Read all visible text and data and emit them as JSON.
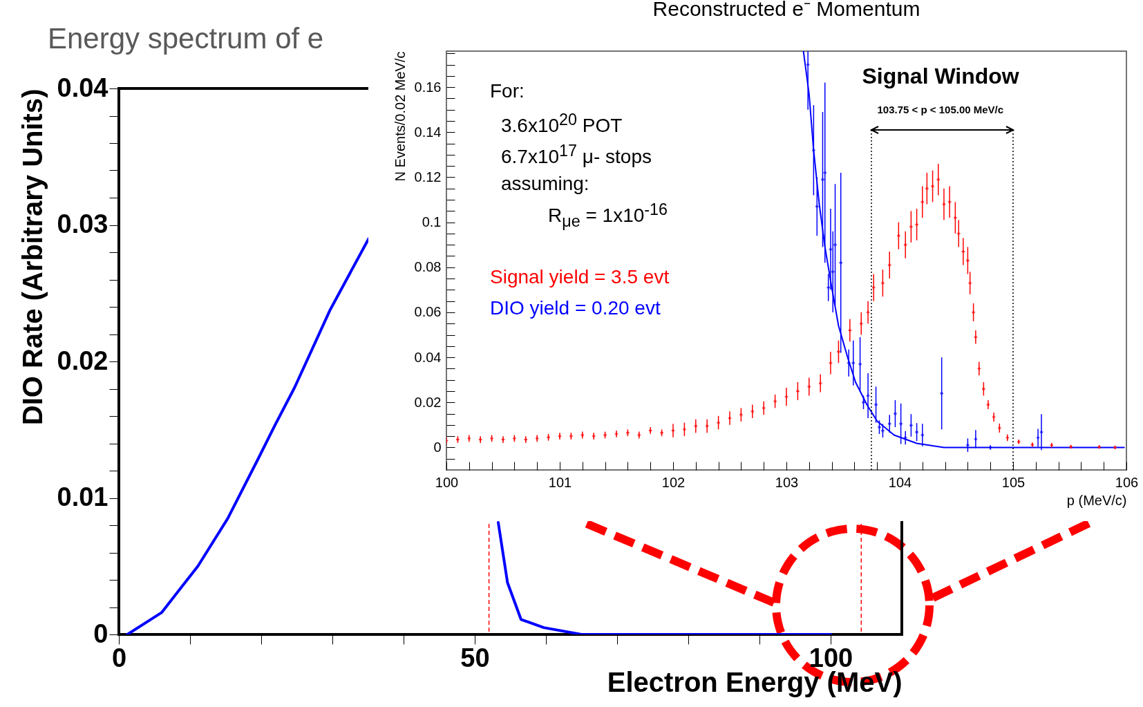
{
  "chart_data": [
    {
      "type": "line",
      "title": "Energy spectrum of e",
      "xlabel": "Electron Energy (MeV)",
      "ylabel": "DIO Rate (Arbitrary Units)",
      "xlim": [
        0,
        110
      ],
      "xticks": [
        0,
        {
          "value": 10,
          "label": null
        },
        {
          "value": 20,
          "label": null
        },
        {
          "value": 30,
          "label": null
        },
        {
          "value": 40,
          "label": null
        },
        50,
        {
          "value": 60,
          "label": null
        },
        {
          "value": 70,
          "label": null
        },
        {
          "value": 80,
          "label": null
        },
        {
          "value": 90,
          "label": null
        },
        100
      ],
      "ylim": [
        0,
        0.04
      ],
      "yticks": [
        0,
        {
          "value": 0.002,
          "label": null
        },
        {
          "value": 0.004,
          "label": null
        },
        {
          "value": 0.006,
          "label": null
        },
        {
          "value": 0.008,
          "label": null
        },
        0.01,
        {
          "value": 0.012,
          "label": null
        },
        {
          "value": 0.014,
          "label": null
        },
        {
          "value": 0.016,
          "label": null
        },
        {
          "value": 0.018,
          "label": null
        },
        0.02,
        {
          "value": 0.022,
          "label": null
        },
        {
          "value": 0.024,
          "label": null
        },
        {
          "value": 0.026,
          "label": null
        },
        {
          "value": 0.028,
          "label": null
        },
        0.03,
        {
          "value": 0.032,
          "label": null
        },
        {
          "value": 0.034,
          "label": null
        },
        {
          "value": 0.036,
          "label": null
        },
        {
          "value": 0.038,
          "label": null
        },
        0.04
      ],
      "series": [
        {
          "color": "#0000ff",
          "x": [
            1.2,
            6.0,
            11.1,
            15.3,
            19.6,
            21.9,
            24.7,
            29.7,
            35.1,
            44,
            53.3,
            54.6,
            56.5,
            59.7,
            65,
            100
          ],
          "values": [
            0,
            0.0016,
            0.005,
            0.0085,
            0.0129,
            0.0153,
            0.0181,
            0.0238,
            0.029,
            null,
            0.0082,
            0.0038,
            0.0011,
            0.0005,
            0,
            0
          ]
        }
      ],
      "ref_lines": [
        {
          "axis": "x",
          "value": 52,
          "color": "#ff0000",
          "line_style": "dashed"
        },
        {
          "axis": "x",
          "value": 104.3,
          "color": "#ff0000",
          "line_style": "dashed"
        }
      ]
    },
    {
      "type": "scatter",
      "title": "Reconstructed e⁻ Momentum",
      "xlabel": "p (MeV/c)",
      "ylabel": "N Events/0.02 MeV/c",
      "marker": "cross",
      "xlim": [
        100,
        106
      ],
      "xticks": [
        100,
        {
          "value": 100.2,
          "label": null
        },
        {
          "value": 100.4,
          "label": null
        },
        {
          "value": 100.6,
          "label": null
        },
        {
          "value": 100.8,
          "label": null
        },
        101,
        {
          "value": 101.2,
          "label": null
        },
        {
          "value": 101.4,
          "label": null
        },
        {
          "value": 101.6,
          "label": null
        },
        {
          "value": 101.8,
          "label": null
        },
        102,
        {
          "value": 102.2,
          "label": null
        },
        {
          "value": 102.4,
          "label": null
        },
        {
          "value": 102.6,
          "label": null
        },
        {
          "value": 102.8,
          "label": null
        },
        103,
        {
          "value": 103.2,
          "label": null
        },
        {
          "value": 103.4,
          "label": null
        },
        {
          "value": 103.6,
          "label": null
        },
        {
          "value": 103.8,
          "label": null
        },
        104,
        {
          "value": 104.2,
          "label": null
        },
        {
          "value": 104.4,
          "label": null
        },
        {
          "value": 104.6,
          "label": null
        },
        {
          "value": 104.8,
          "label": null
        },
        105,
        {
          "value": 105.2,
          "label": null
        },
        {
          "value": 105.4,
          "label": null
        },
        {
          "value": 105.6,
          "label": null
        },
        {
          "value": 105.8,
          "label": null
        },
        106
      ],
      "ylim": [
        -0.01,
        0.176
      ],
      "yticks": [
        {
          "value": -0.005,
          "label": null
        },
        0,
        {
          "value": 0.005,
          "label": null
        },
        {
          "value": 0.01,
          "label": null
        },
        {
          "value": 0.015,
          "label": null
        },
        0.02,
        {
          "value": 0.025,
          "label": null
        },
        {
          "value": 0.03,
          "label": null
        },
        {
          "value": 0.035,
          "label": null
        },
        0.04,
        {
          "value": 0.045,
          "label": null
        },
        {
          "value": 0.05,
          "label": null
        },
        {
          "value": 0.055,
          "label": null
        },
        0.06,
        {
          "value": 0.065,
          "label": null
        },
        {
          "value": 0.07,
          "label": null
        },
        {
          "value": 0.075,
          "label": null
        },
        0.08,
        {
          "value": 0.085,
          "label": null
        },
        {
          "value": 0.09,
          "label": null
        },
        {
          "value": 0.095,
          "label": null
        },
        0.1,
        {
          "value": 0.105,
          "label": null
        },
        {
          "value": 0.11,
          "label": null
        },
        {
          "value": 0.115,
          "label": null
        },
        0.12,
        {
          "value": 0.125,
          "label": null
        },
        {
          "value": 0.13,
          "label": null
        },
        {
          "value": 0.135,
          "label": null
        },
        0.14,
        {
          "value": 0.145,
          "label": null
        },
        {
          "value": 0.15,
          "label": null
        },
        {
          "value": 0.155,
          "label": null
        },
        0.16,
        {
          "value": 0.165,
          "label": null
        },
        {
          "value": 0.17,
          "label": null
        },
        {
          "value": 0.175,
          "label": null
        }
      ],
      "series": [
        {
          "color": "#ff0000",
          "x": [
            100.0,
            100.1,
            100.2,
            100.3,
            100.4,
            100.5,
            100.6,
            100.7,
            100.8,
            100.9,
            101.0,
            101.1,
            101.2,
            101.3,
            101.4,
            101.5,
            101.6,
            101.7,
            101.8,
            101.9,
            102.0,
            102.1,
            102.2,
            102.3,
            102.4,
            102.5,
            102.6,
            102.7,
            102.8,
            102.9,
            103.0,
            103.1,
            103.2,
            103.3,
            103.39,
            103.46,
            103.56,
            103.66,
            103.72,
            103.77,
            103.85,
            103.91,
            103.99,
            104.05,
            104.1,
            104.15,
            104.2,
            104.24,
            104.29,
            104.34,
            104.39,
            104.44,
            104.49,
            104.52,
            104.56,
            104.6,
            104.62,
            104.65,
            104.67,
            104.7,
            104.74,
            104.78,
            104.83,
            104.88,
            104.95,
            105.05,
            105.17,
            105.34,
            105.51,
            105.76,
            105.9
          ],
          "values": [
            0.003,
            0.0035,
            0.004,
            0.0035,
            0.004,
            0.0035,
            0.004,
            0.0035,
            0.004,
            0.0045,
            0.005,
            0.005,
            0.0055,
            0.005,
            0.0055,
            0.006,
            0.0065,
            0.0055,
            0.0075,
            0.0065,
            0.0075,
            0.008,
            0.0095,
            0.0095,
            0.011,
            0.013,
            0.0145,
            0.016,
            0.0175,
            0.0205,
            0.0225,
            0.025,
            0.027,
            0.0285,
            0.0375,
            0.0425,
            0.052,
            0.055,
            0.06,
            0.071,
            0.073,
            0.081,
            0.094,
            0.09,
            0.098,
            0.099,
            0.109,
            0.115,
            0.116,
            0.119,
            0.108,
            0.109,
            0.102,
            0.095,
            0.087,
            0.083,
            0.073,
            0.06,
            0.049,
            0.035,
            0.026,
            0.019,
            0.0135,
            0.0086,
            0.0043,
            0.0025,
            0.0012,
            0.001,
            0.0003,
            0.0002,
            0
          ],
          "errors": [
            0.0015,
            0.0015,
            0.0015,
            0.0015,
            0.0015,
            0.0015,
            0.0015,
            0.0015,
            0.0015,
            0.0015,
            0.0015,
            0.0015,
            0.0015,
            0.0015,
            0.0015,
            0.0015,
            0.0015,
            0.0015,
            0.0015,
            0.0015,
            0.003,
            0.003,
            0.003,
            0.003,
            0.003,
            0.003,
            0.003,
            0.003,
            0.003,
            0.003,
            0.004,
            0.004,
            0.004,
            0.004,
            0.005,
            0.005,
            0.005,
            0.005,
            0.005,
            0.006,
            0.006,
            0.006,
            0.006,
            0.006,
            0.007,
            0.007,
            0.007,
            0.007,
            0.007,
            0.007,
            0.007,
            0.007,
            0.007,
            0.006,
            0.006,
            0.006,
            0.005,
            0.004,
            0.003,
            0.003,
            0.003,
            0.002,
            0.002,
            0.002,
            0.0015,
            0.001,
            0.001,
            0.001,
            0.0008,
            0.0008,
            0.0008
          ]
        },
        {
          "color": "#0000ff",
          "x": [
            103.19,
            103.24,
            103.27,
            103.32,
            103.34,
            103.37,
            103.39,
            103.41,
            103.43,
            103.48,
            103.55,
            103.59,
            103.65,
            103.68,
            103.72,
            103.79,
            103.82,
            103.85,
            103.91,
            103.96,
            104.01,
            104.05,
            104.1,
            104.15,
            104.2,
            104.37,
            104.6,
            104.67,
            104.8,
            105.22,
            105.25
          ],
          "values": [
            0.17,
            0.132,
            0.107,
            0.119,
            0.122,
            0.071,
            0.088,
            0.078,
            0.09,
            0.082,
            0.0375,
            0.0375,
            0.037,
            0.02,
            0.023,
            0.019,
            0.009,
            0.0074,
            0.0105,
            0.015,
            0.0105,
            0.0043,
            0.0098,
            0.0068,
            0.0055,
            0.024,
            0.001,
            0.0037,
            0,
            0.0043,
            0.0068
          ],
          "errors": [
            [
              0.15,
              0.176
            ],
            0.02,
            0.013,
            0.03,
            0.04,
            0.006,
            0.018,
            0.018,
            0.027,
            0.04,
            0.006,
            0.01,
            0.012,
            0.003,
            0.01,
            0.008,
            0.003,
            0.003,
            0.004,
            0.006,
            0.009,
            0.003,
            0.005,
            0.004,
            0.005,
            0.016,
            0.003,
            0.004,
            0.001,
            0.004,
            0.008
          ]
        },
        {
          "type": "line",
          "marker": "none",
          "color": "#0000ff",
          "x": [
            103.15,
            103.2,
            103.24,
            103.29,
            103.34,
            103.4,
            103.46,
            103.54,
            103.61,
            103.71,
            103.8,
            103.95,
            104.15,
            104.39,
            105.98
          ],
          "values": [
            0.176,
            0.157,
            0.132,
            0.108,
            0.089,
            0.071,
            0.054,
            0.04,
            0.029,
            0.019,
            0.0117,
            0.0055,
            0.0018,
            0,
            0
          ]
        }
      ],
      "ref_lines": [
        {
          "axis": "x",
          "value": 103.75,
          "color": "#000000",
          "line_style": "dotted"
        },
        {
          "axis": "x",
          "value": 105,
          "color": "#000000",
          "line_style": "dotted"
        }
      ],
      "annotations": [
        "For:",
        "3.6x10$^{20}$ POT",
        "6.7x10$^{17}$ μ- stops",
        "assuming:",
        "R$_{μe}$ = 1x10$^{-16}$",
        "Signal yield = 3.5 evt",
        "DIO yield = 0.20 evt",
        "Signal Window",
        "103.75 < p < 105.00 MeV/c"
      ]
    }
  ]
}
